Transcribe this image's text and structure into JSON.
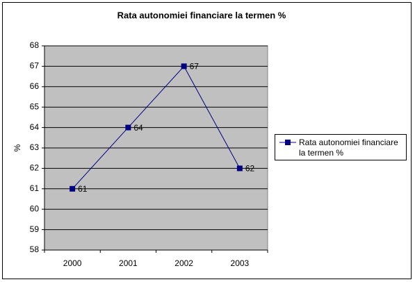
{
  "chart_data": {
    "type": "line",
    "title": "Rata autonomiei financiare la termen %",
    "y_label": "%",
    "categories": [
      "2000",
      "2001",
      "2002",
      "2003"
    ],
    "series": [
      {
        "name": "Rata autonomiei financiare la termen %",
        "color": "#000080",
        "values": [
          61,
          64,
          67,
          62
        ]
      }
    ],
    "ylim": [
      58,
      68
    ],
    "yticks": [
      58,
      59,
      60,
      61,
      62,
      63,
      64,
      65,
      66,
      67,
      68
    ],
    "grid": true,
    "legend": "right",
    "plot_background": "#c0c0c0",
    "title_color": "#ff9900"
  }
}
